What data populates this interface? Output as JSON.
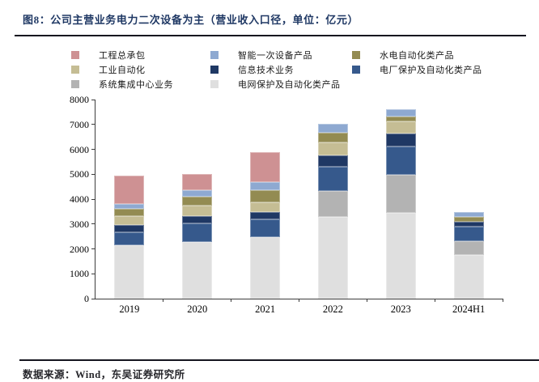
{
  "figure": {
    "title": "图8：公司主营业务电力二次设备为主（营业收入口径，单位：亿元）",
    "source": "数据来源：Wind，东吴证券研究所"
  },
  "chart_data": {
    "type": "bar",
    "stacked": true,
    "title": "公司主营业务电力二次设备为主（营业收入口径，单位：亿元）",
    "xlabel": "",
    "ylabel": "",
    "ylim": [
      0,
      8000
    ],
    "ytick_step": 1000,
    "grid": false,
    "legend_position": "top",
    "categories": [
      "2019",
      "2020",
      "2021",
      "2022",
      "2023",
      "2024H1"
    ],
    "series": [
      {
        "name": "电网保护及自动化类产品",
        "color": "#dfdfdf",
        "values": [
          2150,
          2280,
          2470,
          3290,
          3450,
          1750
        ]
      },
      {
        "name": "系统集成中心业务",
        "color": "#b3b3b3",
        "values": [
          0,
          0,
          0,
          1050,
          1540,
          550
        ]
      },
      {
        "name": "电厂保护及自动化类产品",
        "color": "#36598c",
        "values": [
          520,
          760,
          730,
          970,
          1140,
          610
        ]
      },
      {
        "name": "信息技术业务",
        "color": "#1f3864",
        "values": [
          290,
          270,
          290,
          450,
          490,
          190
        ]
      },
      {
        "name": "工业自动化",
        "color": "#c5bd94",
        "values": [
          350,
          440,
          390,
          510,
          490,
          0
        ]
      },
      {
        "name": "水电自动化类产品",
        "color": "#938b52",
        "values": [
          310,
          350,
          480,
          390,
          220,
          190
        ]
      },
      {
        "name": "智能一次设备产品",
        "color": "#8ea9d1",
        "values": [
          180,
          270,
          330,
          350,
          290,
          195
        ]
      },
      {
        "name": "工程总承包",
        "color": "#ce9193",
        "values": [
          1150,
          630,
          1200,
          0,
          0,
          0
        ]
      }
    ],
    "legend_order": [
      "工程总承包",
      "智能一次设备产品",
      "水电自动化类产品",
      "工业自动化",
      "信息技术业务",
      "电厂保护及自动化类产品",
      "系统集成中心业务",
      "电网保护及自动化类产品"
    ]
  }
}
